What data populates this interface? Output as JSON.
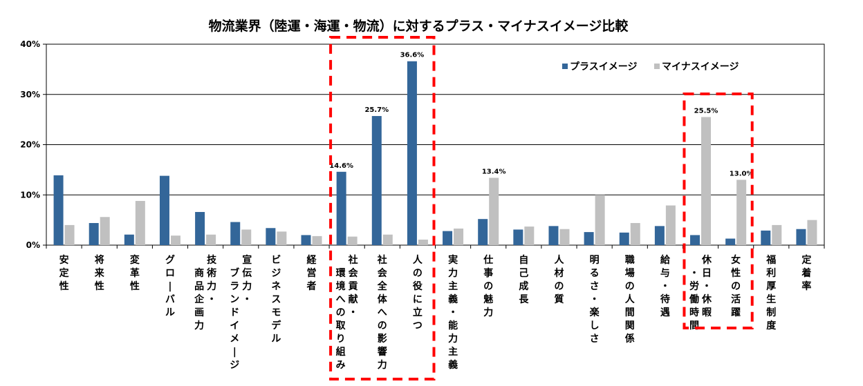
{
  "chart_data": {
    "type": "bar",
    "title": "物流業界（陸運・海運・物流）に対するプラス・マイナスイメージ比較",
    "ylim": [
      0,
      40
    ],
    "yticks": [
      "0%",
      "10%",
      "20%",
      "30%",
      "40%"
    ],
    "grid": true,
    "legend_position": "top-right",
    "categories": [
      "安定性",
      "将来性",
      "変革性",
      "グローバル",
      "技術力・商品企画力",
      "宣伝力・ブランドイメージ",
      "ビジネスモデル",
      "経営者",
      "社会貢献・環境への取り組み",
      "社会全体への影響力",
      "人の役に立つ",
      "実力主義・能力主義",
      "仕事の魅力",
      "自己成長",
      "人材の質",
      "明るさ・楽しさ",
      "職場の人間関係",
      "給与・待遇",
      "休日・休暇・労働時間",
      "女性の活躍",
      "福利厚生制度",
      "定着率"
    ],
    "category_columns": [
      [
        "安定性"
      ],
      [
        "将来性"
      ],
      [
        "変革性"
      ],
      [
        "グローバル"
      ],
      [
        "技術力・",
        "商品企画力"
      ],
      [
        "宣伝力・",
        "ブランドイメージ"
      ],
      [
        "ビジネスモデル"
      ],
      [
        "経営者"
      ],
      [
        "社会貢献・",
        "環境への取り組み"
      ],
      [
        "社会全体への影響力"
      ],
      [
        "人の役に立つ"
      ],
      [
        "実力主義・能力主義"
      ],
      [
        "仕事の魅力"
      ],
      [
        "自己成長"
      ],
      [
        "人材の質"
      ],
      [
        "明るさ・楽しさ"
      ],
      [
        "職場の人間関係"
      ],
      [
        "給与・待遇"
      ],
      [
        "休日・休暇",
        "・労働時間"
      ],
      [
        "女性の活躍"
      ],
      [
        "福利厚生制度"
      ],
      [
        "定着率"
      ]
    ],
    "series": [
      {
        "name": "プラスイメージ",
        "color": "#336699",
        "values": [
          13.9,
          4.4,
          2.1,
          13.8,
          6.6,
          4.6,
          3.4,
          2.0,
          14.6,
          25.7,
          36.6,
          2.8,
          5.2,
          3.1,
          3.8,
          2.6,
          2.5,
          3.8,
          2.0,
          1.3,
          2.9,
          3.2
        ],
        "labels": [
          "",
          "",
          "",
          "",
          "",
          "",
          "",
          "",
          "14.6%",
          "25.7%",
          "36.6%",
          "",
          "",
          "",
          "",
          "",
          "",
          "",
          "",
          "",
          "",
          ""
        ]
      },
      {
        "name": "マイナスイメージ",
        "color": "#c0c0c0",
        "values": [
          4.0,
          5.6,
          8.8,
          1.9,
          2.1,
          3.1,
          2.7,
          1.8,
          1.7,
          2.1,
          1.1,
          3.3,
          13.4,
          3.7,
          3.2,
          10.0,
          4.4,
          7.9,
          25.5,
          13.0,
          4.0,
          5.0
        ],
        "labels": [
          "",
          "",
          "",
          "",
          "",
          "",
          "",
          "",
          "",
          "",
          "",
          "",
          "13.4%",
          "",
          "",
          "",
          "",
          "",
          "25.5%",
          "13.0%",
          "",
          ""
        ]
      }
    ],
    "highlight_color": "#ff0000"
  }
}
